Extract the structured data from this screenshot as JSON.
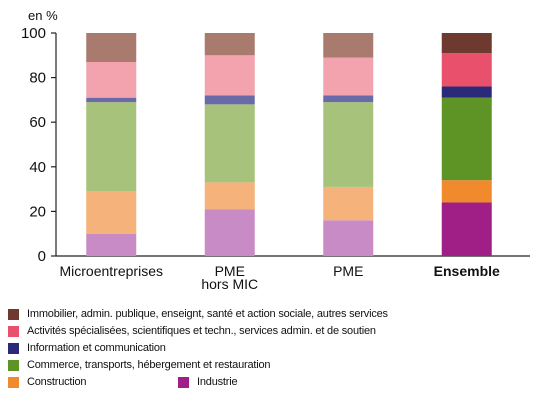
{
  "chart_data": {
    "type": "bar",
    "stacked": true,
    "unit_label": "en %",
    "ylim": [
      0,
      100
    ],
    "yticks": [
      0,
      20,
      40,
      60,
      80,
      100
    ],
    "grid": false,
    "legend_position": "bottom",
    "categories": [
      "Microentreprises",
      "PME hors MIC",
      "PME",
      "Ensemble"
    ],
    "category_bold": [
      false,
      false,
      false,
      true
    ],
    "series": [
      {
        "name": "Industrie",
        "values": [
          10,
          21,
          16,
          24
        ],
        "color": "#c98bc6",
        "color_ensemble": "#a01f86"
      },
      {
        "name": "Construction",
        "values": [
          19,
          12,
          15,
          10
        ],
        "color": "#f5b27a",
        "color_ensemble": "#f08a2d"
      },
      {
        "name": "Commerce, transports, hébergement et restauration",
        "values": [
          40,
          35,
          38,
          37
        ],
        "color": "#a7c27a",
        "color_ensemble": "#5e9425"
      },
      {
        "name": "Information et communication",
        "values": [
          2,
          4,
          3,
          5
        ],
        "color": "#6b6aa8",
        "color_ensemble": "#2b2a7a"
      },
      {
        "name": "Activités spécialisées, scientifiques et techn., services admin. et de soutien",
        "values": [
          16,
          18,
          17,
          15
        ],
        "color": "#f3a3ad",
        "color_ensemble": "#e8506b"
      },
      {
        "name": "Immobilier, admin. publique, enseignt, santé et action sociale, autres services",
        "values": [
          13,
          10,
          11,
          9
        ],
        "color": "#a97a6e",
        "color_ensemble": "#6e3a30"
      }
    ]
  },
  "legend": {
    "rows": [
      {
        "label": "Immobilier, admin. publique, enseignt, santé et action sociale, autres services",
        "color": "#6e3a30"
      },
      {
        "label": "Activités spécialisées, scientifiques et techn., services admin. et de soutien",
        "color": "#e8506b"
      },
      {
        "label": "Information et communication",
        "color": "#2b2a7a"
      },
      {
        "label": "Commerce, transports, hébergement et restauration",
        "color": "#5e9425"
      }
    ],
    "last_row": [
      {
        "label": "Construction",
        "color": "#f08a2d"
      },
      {
        "label": "Industrie",
        "color": "#a01f86"
      }
    ]
  }
}
